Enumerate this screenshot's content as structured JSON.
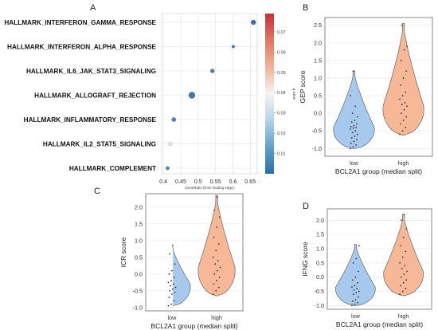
{
  "chart_data": [
    {
      "type": "scatter",
      "panel": "A",
      "categories": [
        "HALLMARK_INTERFERON_GAMMA_RESPONSE",
        "HALLMARK_INTERFERON_ALPHA_RESPONSE",
        "HALLMARK_IL6_JAK_STAT3_SIGNALING",
        "HALLMARK_ALLOGRAFT_REJECTION",
        "HALLMARK_INFLAMMATORY_RESPONSE",
        "HALLMARK_IL2_STAT5_SIGNALING",
        "HALLMARK_COMPLEMENT"
      ],
      "x": [
        0.659,
        0.601,
        0.541,
        0.482,
        0.43,
        0.42,
        0.412
      ],
      "q_values": [
        0.001,
        0.002,
        0.005,
        0.003,
        0.006,
        0.04,
        0.008
      ],
      "sizes": [
        3.0,
        1.8,
        2.5,
        4.0,
        2.6,
        2.2,
        2.2
      ],
      "xlabel": "GeneRatio (from leading edge)",
      "xticks": [
        0.4,
        0.45,
        0.5,
        0.55,
        0.6,
        0.65
      ],
      "xlim": [
        0.395,
        0.67
      ],
      "colorbar": {
        "label": "q-value",
        "range": [
          0,
          0.079
        ],
        "ticks": [
          0.01,
          0.02,
          0.03,
          0.04,
          0.05,
          0.06,
          0.07
        ],
        "colors": [
          "#2a6fa8",
          "#f7f4f2",
          "#c8313a"
        ]
      },
      "grid": true
    },
    {
      "type": "violin",
      "panel": "B",
      "categories": [
        "low",
        "high"
      ],
      "xlabel": "BCL2A1 group (median split)",
      "ylabel": "GEP score",
      "ylim": [
        -1.22,
        2.72
      ],
      "yticks": [
        -1.0,
        -0.5,
        0.0,
        0.5,
        1.0,
        1.5,
        2.0,
        2.5
      ],
      "colors": [
        "#a7c9ee",
        "#f7b898"
      ],
      "series": [
        {
          "name": "low",
          "min": -1.0,
          "max": 1.2,
          "mode": -0.4,
          "points": [
            -1.0,
            -0.95,
            -0.9,
            -0.85,
            -0.8,
            -0.75,
            -0.7,
            -0.65,
            -0.6,
            -0.55,
            -0.5,
            -0.45,
            -0.42,
            -0.4,
            -0.38,
            -0.35,
            -0.3,
            -0.25,
            -0.2,
            -0.1,
            0.0,
            0.2,
            0.5,
            1.2
          ]
        },
        {
          "name": "high",
          "min": -0.62,
          "max": 2.55,
          "mode": 0.2,
          "points": [
            -0.6,
            -0.5,
            -0.4,
            -0.3,
            -0.2,
            -0.1,
            0.0,
            0.1,
            0.2,
            0.25,
            0.3,
            0.4,
            0.5,
            0.6,
            0.8,
            1.0,
            1.2,
            1.5,
            1.8,
            1.9,
            2.5
          ]
        }
      ]
    },
    {
      "type": "violin",
      "panel": "C",
      "categories": [
        "low",
        "high"
      ],
      "xlabel": "BCL2A1 group (median split)",
      "ylabel": "ICR score",
      "ylim": [
        -1.1,
        2.4
      ],
      "yticks": [
        -1.0,
        -0.5,
        0.0,
        0.5,
        1.0,
        1.5,
        2.0
      ],
      "colors": [
        "#a7c9ee",
        "#f7b898"
      ],
      "series": [
        {
          "name": "low",
          "min": -0.95,
          "max": 0.85,
          "mode": -0.3,
          "points": [
            -0.95,
            -0.9,
            -0.8,
            -0.7,
            -0.6,
            -0.55,
            -0.5,
            -0.45,
            -0.4,
            -0.35,
            -0.3,
            -0.25,
            -0.2,
            -0.1,
            0.0,
            0.1,
            0.3,
            0.6,
            0.85
          ]
        },
        {
          "name": "high",
          "min": -0.65,
          "max": 2.35,
          "mode": 0.2,
          "points": [
            -0.6,
            -0.5,
            -0.4,
            -0.3,
            -0.2,
            -0.1,
            0.0,
            0.1,
            0.2,
            0.3,
            0.4,
            0.5,
            0.7,
            0.9,
            1.1,
            1.4,
            1.7,
            1.9,
            2.3
          ]
        }
      ]
    },
    {
      "type": "violin",
      "panel": "D",
      "categories": [
        "low",
        "high"
      ],
      "xlabel": "BCL2A1 group (median split)",
      "ylabel": "IFNG score",
      "ylim": [
        -1.13,
        2.4
      ],
      "yticks": [
        -1.0,
        -0.5,
        0.0,
        0.5,
        1.0,
        1.5,
        2.0
      ],
      "colors": [
        "#a7c9ee",
        "#f7b898"
      ],
      "series": [
        {
          "name": "low",
          "min": -1.0,
          "max": 1.15,
          "mode": -0.35,
          "points": [
            -1.0,
            -0.95,
            -0.9,
            -0.85,
            -0.8,
            -0.7,
            -0.6,
            -0.55,
            -0.5,
            -0.45,
            -0.4,
            -0.35,
            -0.3,
            -0.2,
            -0.1,
            0.0,
            0.2,
            0.5,
            0.65,
            1.1
          ]
        },
        {
          "name": "high",
          "min": -0.65,
          "max": 2.2,
          "mode": 0.2,
          "points": [
            -0.6,
            -0.5,
            -0.4,
            -0.3,
            -0.2,
            -0.1,
            0.0,
            0.1,
            0.2,
            0.3,
            0.4,
            0.5,
            0.7,
            0.9,
            1.1,
            1.4,
            1.7,
            2.0,
            2.2
          ]
        }
      ]
    }
  ]
}
